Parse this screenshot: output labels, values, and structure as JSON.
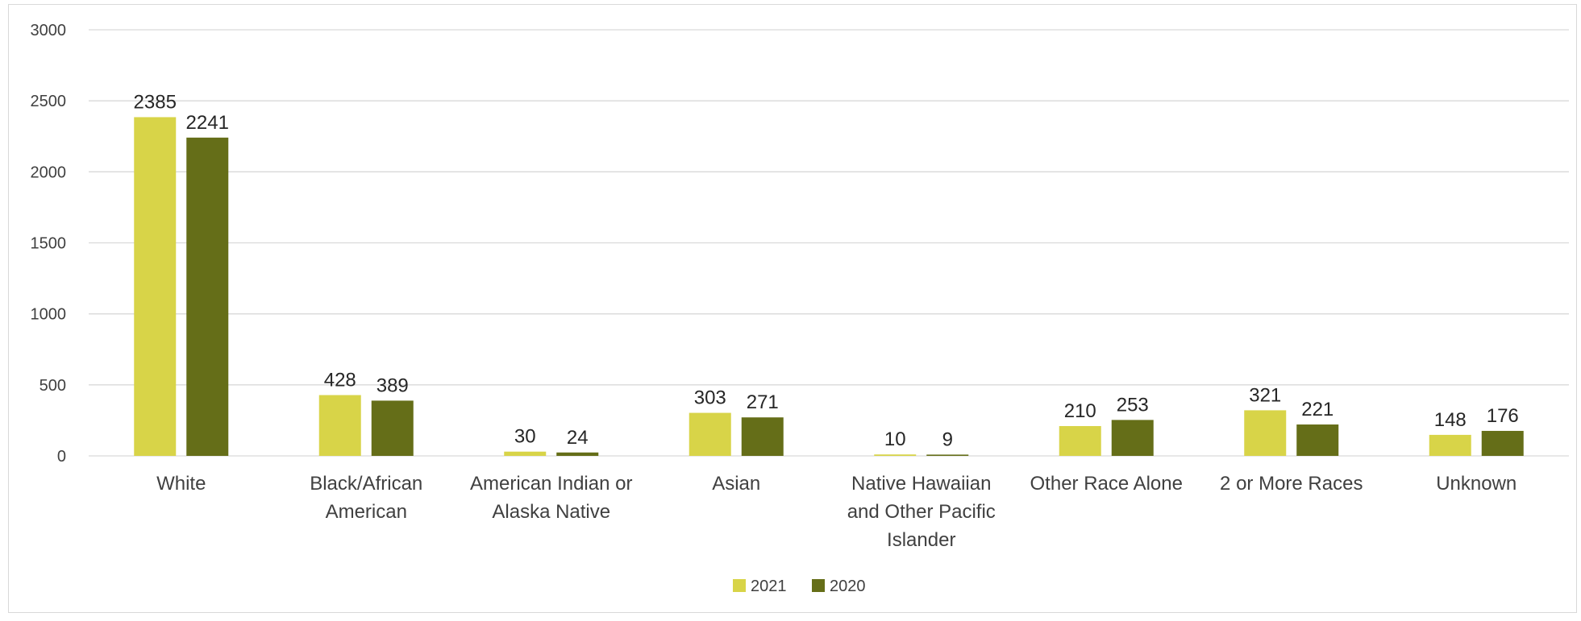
{
  "chart_data": {
    "type": "bar",
    "categories": [
      [
        "White"
      ],
      [
        "Black/African",
        "American"
      ],
      [
        "American Indian or",
        "Alaska Native"
      ],
      [
        "Asian"
      ],
      [
        "Native Hawaiian",
        "and Other Pacific",
        "Islander"
      ],
      [
        "Other Race Alone"
      ],
      [
        "2 or More Races"
      ],
      [
        "Unknown"
      ]
    ],
    "series": [
      {
        "name": "2021",
        "color": "#d8d448",
        "values": [
          2385,
          428,
          30,
          303,
          10,
          210,
          321,
          148
        ]
      },
      {
        "name": "2020",
        "color": "#656e18",
        "values": [
          2241,
          389,
          24,
          271,
          9,
          253,
          221,
          176
        ]
      }
    ],
    "yticks": [
      "0",
      "500",
      "1000",
      "1500",
      "2000",
      "2500",
      "3000"
    ],
    "ylim": [
      0,
      3000
    ],
    "grid": true,
    "legend": "bottom-center",
    "title": "",
    "xlabel": "",
    "ylabel": ""
  }
}
